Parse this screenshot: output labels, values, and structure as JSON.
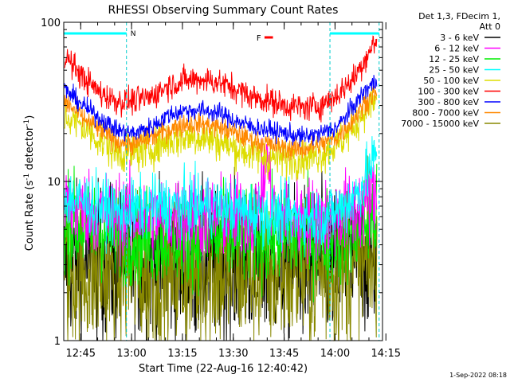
{
  "chart_data": {
    "type": "line",
    "title": "RHESSI Observing Summary Count Rates",
    "xlabel": "Start Time (22-Aug-16 12:40:42)",
    "ylabel_main": "Count Rate (s",
    "ylabel_sup": "-1",
    "ylabel_tail": " detector",
    "ylabel_sup2": "-1",
    "ylabel_close": ")",
    "yscale": "log",
    "ylim": [
      1,
      100
    ],
    "xlim_minutes": [
      -0.7,
      93.3
    ],
    "x_ticks": [
      {
        "label": "12:45",
        "m": 4.3
      },
      {
        "label": "13:00",
        "m": 19.3
      },
      {
        "label": "13:15",
        "m": 34.3
      },
      {
        "label": "13:30",
        "m": 49.3
      },
      {
        "label": "13:45",
        "m": 64.3
      },
      {
        "label": "14:00",
        "m": 79.3
      },
      {
        "label": "14:15",
        "m": 94.3
      }
    ],
    "y_ticks": [
      {
        "label": "1",
        "v": 1
      },
      {
        "label": "10",
        "v": 10
      },
      {
        "label": "100",
        "v": 100
      }
    ],
    "legend": {
      "position": "top-right",
      "header": [
        "Det 1,3, FDecim 1,",
        "Att 0"
      ],
      "entries": [
        {
          "label": "3 - 6 keV",
          "color": "#000000"
        },
        {
          "label": "6 - 12 keV",
          "color": "#ff00ff"
        },
        {
          "label": "12 - 25 keV",
          "color": "#00ee00"
        },
        {
          "label": "25 - 50 keV",
          "color": "#00ffff"
        },
        {
          "label": "50 - 100 keV",
          "color": "#dddd00"
        },
        {
          "label": "100 - 300 keV",
          "color": "#ff0000"
        },
        {
          "label": "300 - 800 keV",
          "color": "#0000ff"
        },
        {
          "label": "800 - 7000 keV",
          "color": "#ff8800"
        },
        {
          "label": "7000 - 15000 keV",
          "color": "#888800"
        }
      ]
    },
    "annotations": {
      "night_label": "N",
      "flare_label": "F",
      "night_intervals_minutes": [
        [
          -0.7,
          17.8
        ],
        [
          77.8,
          92.3
        ]
      ],
      "flare_interval_minutes": [
        58.5,
        61.0
      ],
      "saa_lines_minutes": [
        17.8,
        77.8,
        92.3
      ]
    },
    "series": [
      {
        "name": "100 - 300 keV",
        "color": "#ff0000",
        "noise": 0.1,
        "points": [
          [
            -0.5,
            62
          ],
          [
            5,
            45
          ],
          [
            10,
            36
          ],
          [
            15,
            32
          ],
          [
            20,
            32
          ],
          [
            25,
            34
          ],
          [
            30,
            40
          ],
          [
            35,
            43
          ],
          [
            40,
            44
          ],
          [
            45,
            42
          ],
          [
            50,
            38
          ],
          [
            55,
            34
          ],
          [
            60,
            32
          ],
          [
            65,
            30
          ],
          [
            70,
            29
          ],
          [
            75,
            30
          ],
          [
            80,
            35
          ],
          [
            85,
            45
          ],
          [
            88,
            58
          ],
          [
            91,
            75
          ]
        ]
      },
      {
        "name": "300 - 800 keV",
        "color": "#0000ff",
        "noise": 0.07,
        "points": [
          [
            -0.5,
            38
          ],
          [
            5,
            30
          ],
          [
            10,
            25
          ],
          [
            15,
            21
          ],
          [
            20,
            20
          ],
          [
            25,
            22
          ],
          [
            30,
            26
          ],
          [
            35,
            28
          ],
          [
            40,
            28
          ],
          [
            45,
            27
          ],
          [
            50,
            24
          ],
          [
            55,
            22
          ],
          [
            60,
            21
          ],
          [
            65,
            20
          ],
          [
            70,
            19
          ],
          [
            75,
            20
          ],
          [
            80,
            22
          ],
          [
            85,
            30
          ],
          [
            88,
            37
          ],
          [
            91,
            42
          ]
        ]
      },
      {
        "name": "800 - 7000 keV",
        "color": "#ff8800",
        "noise": 0.08,
        "points": [
          [
            -0.5,
            32
          ],
          [
            5,
            25
          ],
          [
            10,
            21
          ],
          [
            15,
            18
          ],
          [
            20,
            17
          ],
          [
            25,
            19
          ],
          [
            30,
            21
          ],
          [
            35,
            23
          ],
          [
            40,
            23
          ],
          [
            45,
            22
          ],
          [
            50,
            20
          ],
          [
            55,
            18
          ],
          [
            60,
            17
          ],
          [
            65,
            16
          ],
          [
            70,
            16
          ],
          [
            75,
            17
          ],
          [
            80,
            19
          ],
          [
            85,
            25
          ],
          [
            88,
            31
          ],
          [
            91,
            36
          ]
        ]
      },
      {
        "name": "50 - 100 keV",
        "color": "#dddd00",
        "noise": 0.14,
        "points": [
          [
            -0.5,
            26
          ],
          [
            5,
            22
          ],
          [
            10,
            18
          ],
          [
            15,
            15
          ],
          [
            20,
            15
          ],
          [
            25,
            16
          ],
          [
            30,
            18
          ],
          [
            35,
            19
          ],
          [
            40,
            19
          ],
          [
            45,
            18
          ],
          [
            50,
            16
          ],
          [
            55,
            15
          ],
          [
            60,
            14
          ],
          [
            65,
            14
          ],
          [
            70,
            14
          ],
          [
            75,
            15
          ],
          [
            80,
            17
          ],
          [
            85,
            22
          ],
          [
            88,
            28
          ],
          [
            91,
            32
          ]
        ]
      },
      {
        "name": "25 - 50 keV",
        "color": "#00ffff",
        "noise": 0.22,
        "points": [
          [
            -0.5,
            8
          ],
          [
            5,
            7.5
          ],
          [
            10,
            7
          ],
          [
            15,
            6.5
          ],
          [
            20,
            6.5
          ],
          [
            25,
            7
          ],
          [
            30,
            7
          ],
          [
            35,
            7
          ],
          [
            40,
            7
          ],
          [
            45,
            7
          ],
          [
            50,
            6.5
          ],
          [
            55,
            6.5
          ],
          [
            60,
            6
          ],
          [
            65,
            6
          ],
          [
            70,
            6
          ],
          [
            75,
            6
          ],
          [
            80,
            6.5
          ],
          [
            85,
            8
          ],
          [
            88,
            10
          ],
          [
            91,
            14
          ]
        ]
      },
      {
        "name": "6 - 12 keV",
        "color": "#ff00ff",
        "noise": 0.3,
        "points": [
          [
            -0.5,
            7
          ],
          [
            10,
            6.5
          ],
          [
            20,
            6
          ],
          [
            30,
            6
          ],
          [
            40,
            6
          ],
          [
            50,
            6
          ],
          [
            55,
            6
          ],
          [
            58,
            9
          ],
          [
            59.5,
            14
          ],
          [
            60.5,
            8
          ],
          [
            62,
            6
          ],
          [
            70,
            5.8
          ],
          [
            80,
            6
          ],
          [
            88,
            7
          ],
          [
            91,
            8
          ]
        ]
      },
      {
        "name": "12 - 25 keV",
        "color": "#00ee00",
        "noise": 0.35,
        "points": [
          [
            -0.5,
            5.5
          ],
          [
            10,
            5
          ],
          [
            20,
            4.5
          ],
          [
            30,
            4.5
          ],
          [
            40,
            4.5
          ],
          [
            50,
            4.5
          ],
          [
            60,
            4.5
          ],
          [
            70,
            4.5
          ],
          [
            80,
            4.5
          ],
          [
            86,
            5
          ],
          [
            91,
            6
          ]
        ]
      },
      {
        "name": "3 - 6 keV",
        "color": "#000000",
        "noise": 0.55,
        "points": [
          [
            -0.5,
            3
          ],
          [
            20,
            3
          ],
          [
            40,
            3
          ],
          [
            60,
            3
          ],
          [
            80,
            3
          ],
          [
            91,
            3.5
          ]
        ]
      },
      {
        "name": "7000 - 15000 keV",
        "color": "#888800",
        "noise": 0.55,
        "points": [
          [
            -0.5,
            2.6
          ],
          [
            20,
            2.6
          ],
          [
            40,
            2.6
          ],
          [
            60,
            2.6
          ],
          [
            80,
            2.6
          ],
          [
            91,
            3
          ]
        ]
      }
    ]
  },
  "footer": {
    "timestamp": "1-Sep-2022 08:18"
  }
}
